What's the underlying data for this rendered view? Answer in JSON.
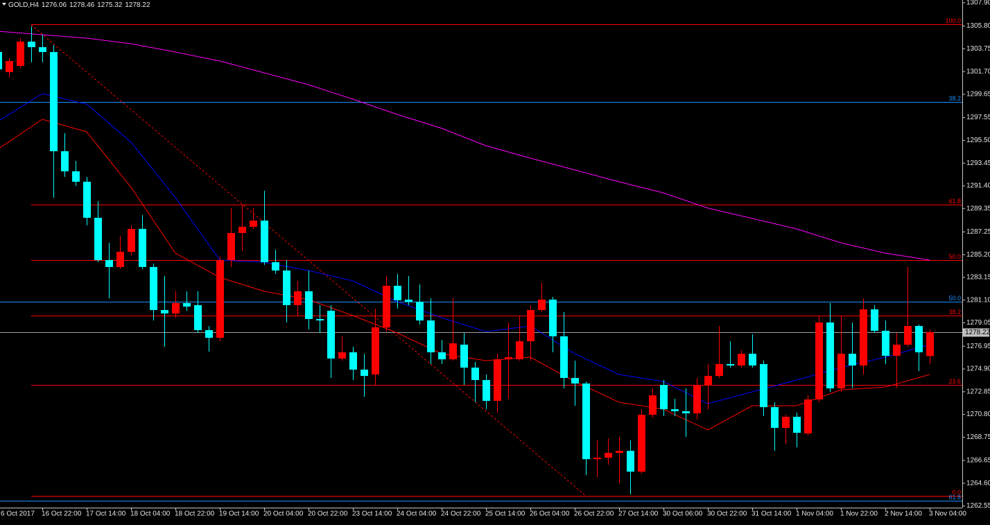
{
  "chart_data": {
    "type": "candlestick",
    "symbol": "GOLD,H4",
    "up_color": "#ff0000",
    "down_color": "#00ffff",
    "categories": [
      "6 Oct 2017",
      null,
      null,
      null,
      "16 Oct 22:00",
      null,
      null,
      null,
      "17 Oct 14:00",
      null,
      null,
      null,
      "18 Oct 04:00",
      null,
      null,
      null,
      "18 Oct 22:00",
      null,
      null,
      null,
      "19 Oct 14:00",
      null,
      null,
      null,
      "20 Oct 04:00",
      null,
      null,
      null,
      "20 Oct 22:00",
      null,
      null,
      null,
      "23 Oct 14:00",
      null,
      null,
      null,
      "24 Oct 04:00",
      null,
      null,
      null,
      "24 Oct 22:00",
      null,
      null,
      null,
      "25 Oct 14:00",
      null,
      null,
      null,
      "26 Oct 04:00",
      null,
      null,
      null,
      "26 Oct 22:00",
      null,
      null,
      null,
      "27 Oct 14:00",
      null,
      null,
      null,
      "30 Oct 06:00",
      null,
      null,
      null,
      "30 Oct 22:00",
      null,
      null,
      null,
      "31 Oct 14:00",
      null,
      null,
      null,
      "1 Nov 04:00",
      null,
      null,
      null,
      "1 Nov 22:00",
      null,
      null,
      null,
      "2 Nov 14:00",
      null,
      null,
      null,
      "3 Nov 04:00"
    ],
    "open": [
      1303.46,
      1301.65,
      1302.21,
      1304.4,
      1303.9,
      1303.46,
      1294.52,
      1292.71,
      1291.77,
      1288.52,
      1284.71,
      1284.09,
      1285.46,
      1287.52,
      1284.09,
      1280.21,
      1279.9,
      1280.84,
      1280.65,
      1278.4,
      1277.71,
      1284.71,
      1287.15,
      1287.71,
      1288.27,
      1284.52,
      1283.77,
      1280.65,
      1281.9,
      1279.4,
      1280.15,
      1275.84,
      1276.4,
      1274.84,
      1274.4,
      1278.65,
      1282.4,
      1281.15,
      1280.96,
      1279.27,
      1276.4,
      1275.77,
      1277.09,
      1275.02,
      1273.9,
      1272.02,
      1275.77,
      1275.77,
      1277.4,
      1280.21,
      1281.15,
      1277.84,
      1274.09,
      1273.59,
      1266.77,
      1266.9,
      1267.34,
      1267.52,
      1265.65,
      1270.77,
      1273.46,
      1271.27,
      1271.09,
      1270.9,
      1273.46,
      1274.27,
      1275.34,
      1275.21,
      1276.27,
      1275.34,
      1271.46,
      1269.59,
      1270.59,
      1269.09,
      1272.15,
      1279.09,
      1273.15,
      1276.27,
      1275.21,
      1280.27,
      1278.34,
      1276.09,
      1277.09,
      1278.77,
      1276.06
    ],
    "high": [
      1303.78,
      1302.9,
      1304.71,
      1305.78,
      1305.03,
      1304.09,
      1296.15,
      1293.65,
      1292.21,
      1290.02,
      1286.27,
      1286.9,
      1287.84,
      1288.77,
      1284.4,
      1283.27,
      1281.9,
      1281.9,
      1281.9,
      1278.77,
      1285.02,
      1289.4,
      1289.71,
      1289.4,
      1290.96,
      1285.65,
      1284.71,
      1282.84,
      1283.77,
      1280.65,
      1280.65,
      1277.84,
      1276.9,
      1276.27,
      1280.34,
      1283.27,
      1283.46,
      1283.27,
      1282.52,
      1281.27,
      1277.52,
      1281.27,
      1278.15,
      1275.52,
      1274.4,
      1276.27,
      1279.09,
      1279.71,
      1280.65,
      1282.65,
      1281.4,
      1280.02,
      1275.65,
      1273.77,
      1268.46,
      1268.65,
      1268.77,
      1268.46,
      1271.27,
      1273.15,
      1273.9,
      1272.21,
      1273.15,
      1274.09,
      1275.34,
      1278.77,
      1277.4,
      1276.59,
      1278.02,
      1275.65,
      1271.9,
      1270.77,
      1270.96,
      1272.52,
      1279.71,
      1280.84,
      1279.71,
      1279.09,
      1281.27,
      1280.65,
      1279.27,
      1278.15,
      1284.09,
      1278.9,
      1278.46
    ],
    "low": [
      1301.59,
      1301.15,
      1302.02,
      1302.53,
      1302.53,
      1290.34,
      1292.21,
      1291.4,
      1287.84,
      1284.52,
      1281.27,
      1283.9,
      1285.15,
      1283.9,
      1279.27,
      1276.9,
      1279.52,
      1280.15,
      1278.15,
      1276.46,
      1277.4,
      1284.09,
      1285.52,
      1287.52,
      1284.27,
      1283.46,
      1279.09,
      1279.71,
      1278.46,
      1278.15,
      1274.09,
      1275.65,
      1273.9,
      1272.4,
      1273.46,
      1278.27,
      1280.34,
      1280.65,
      1278.9,
      1275.34,
      1275.34,
      1275.65,
      1273.46,
      1271.9,
      1271.27,
      1270.96,
      1272.21,
      1275.65,
      1275.65,
      1280.02,
      1276.4,
      1273.15,
      1271.59,
      1265.34,
      1265.15,
      1266.27,
      1264.59,
      1263.59,
      1265.46,
      1270.52,
      1270.65,
      1270.65,
      1268.77,
      1270.34,
      1271.27,
      1274.09,
      1275.02,
      1275.02,
      1275.02,
      1270.65,
      1267.52,
      1268.15,
      1267.84,
      1268.9,
      1271.9,
      1272.84,
      1272.84,
      1273.15,
      1274.4,
      1278.15,
      1275.34,
      1273.15,
      1276.9,
      1274.71,
      1275.32
    ],
    "close": [
      1301.9,
      1302.65,
      1304.4,
      1303.9,
      1303.46,
      1294.52,
      1292.71,
      1291.77,
      1288.52,
      1284.71,
      1284.09,
      1285.46,
      1287.52,
      1284.09,
      1280.21,
      1279.9,
      1280.84,
      1280.52,
      1278.4,
      1277.71,
      1284.71,
      1287.15,
      1287.71,
      1288.27,
      1284.52,
      1283.77,
      1280.65,
      1281.9,
      1279.4,
      1279.27,
      1275.84,
      1276.4,
      1274.84,
      1274.27,
      1278.65,
      1282.4,
      1281.09,
      1280.96,
      1279.27,
      1276.4,
      1275.77,
      1277.21,
      1275.02,
      1273.9,
      1272.02,
      1275.77,
      1275.96,
      1277.4,
      1280.21,
      1281.15,
      1277.84,
      1274.09,
      1273.59,
      1266.77,
      1266.9,
      1267.34,
      1267.52,
      1265.65,
      1270.77,
      1272.52,
      1271.27,
      1271.09,
      1270.9,
      1273.46,
      1274.27,
      1275.34,
      1275.21,
      1276.27,
      1275.21,
      1271.46,
      1269.59,
      1270.59,
      1269.15,
      1272.15,
      1279.09,
      1273.15,
      1276.27,
      1275.21,
      1280.27,
      1278.34,
      1276.09,
      1277.09,
      1278.77,
      1276.4,
      1278.22
    ],
    "moving_averages": [
      {
        "color": "#ff00ff",
        "x": [
          0,
          4,
          8,
          12,
          16,
          20,
          24,
          28,
          32,
          36,
          40,
          44,
          48,
          52,
          56,
          60,
          64,
          68,
          72,
          76,
          80,
          84
        ],
        "values": [
          1305.34,
          1305.02,
          1304.71,
          1304.21,
          1303.46,
          1302.65,
          1301.59,
          1300.52,
          1299.21,
          1297.84,
          1296.59,
          1295.02,
          1293.9,
          1292.84,
          1291.77,
          1290.77,
          1289.4,
          1288.46,
          1287.52,
          1286.27,
          1285.34,
          1284.71
        ]
      },
      {
        "color": "#0000ff",
        "x": [
          0,
          4,
          8,
          12,
          16,
          20,
          24,
          28,
          32,
          36,
          40,
          44,
          48,
          52,
          56,
          60,
          64,
          68,
          72,
          76,
          80,
          84
        ],
        "values": [
          1297.21,
          1299.71,
          1298.77,
          1295.34,
          1290.34,
          1284.71,
          1284.52,
          1283.77,
          1282.84,
          1280.96,
          1279.52,
          1278.27,
          1278.77,
          1276.27,
          1274.4,
          1273.77,
          1271.77,
          1272.84,
          1273.9,
          1275.02,
          1275.96,
          1277.09
        ]
      },
      {
        "color": "#ff0000",
        "x": [
          0,
          4,
          8,
          12,
          16,
          20,
          24,
          28,
          32,
          36,
          40,
          44,
          48,
          52,
          56,
          60,
          64,
          68,
          72,
          76,
          80,
          84
        ],
        "values": [
          1294.71,
          1297.4,
          1296.27,
          1291.27,
          1285.34,
          1283.15,
          1281.9,
          1281.15,
          1279.71,
          1278.15,
          1276.27,
          1275.65,
          1275.96,
          1273.77,
          1271.9,
          1271.27,
          1269.4,
          1271.59,
          1271.59,
          1273.02,
          1273.27,
          1274.4
        ]
      }
    ],
    "fib_levels": [
      {
        "label": "100.0",
        "price": 1305.96,
        "color": "#ff0000"
      },
      {
        "label": "61.8",
        "price": 1289.71,
        "color": "#ff0000"
      },
      {
        "label": "50.0",
        "price": 1284.71,
        "color": "#ff0000"
      },
      {
        "label": "38.2",
        "price": 1279.71,
        "color": "#ff0000"
      },
      {
        "label": "23.6",
        "price": 1273.46,
        "color": "#ff0000"
      },
      {
        "label": "0.0",
        "price": 1263.46,
        "color": "#ff0000"
      },
      {
        "label": "38.2",
        "price": 1298.96,
        "color": "#1e90ff"
      },
      {
        "label": "50.0",
        "price": 1280.96,
        "color": "#1e90ff"
      },
      {
        "label": "61.8",
        "price": 1263.03,
        "color": "#1e90ff"
      }
    ],
    "trendline": {
      "color": "#ff0000",
      "x": [
        3,
        53
      ],
      "values": [
        1305.9,
        1263.46
      ]
    },
    "ylim": [
      1262.4,
      1308.15
    ],
    "yticks": [
      {
        "value": 1307.9,
        "label": "1307.90"
      },
      {
        "value": 1305.8,
        "label": "1305.80"
      },
      1303.75,
      {
        "value": 1301.7,
        "label": "1301.70"
      },
      1299.65,
      1297.55,
      {
        "value": 1295.5,
        "label": "1295.50"
      },
      1293.45,
      {
        "value": 1291.4,
        "label": "1291.40"
      },
      1289.35,
      1287.25,
      {
        "value": 1285.2,
        "label": "1285.20"
      },
      1283.15,
      {
        "value": 1281.1,
        "label": "1281.10"
      },
      1279.05,
      1276.95,
      {
        "value": 1274.9,
        "label": "1274.90"
      },
      1272.85,
      {
        "value": 1270.8,
        "label": "1270.80"
      },
      1268.75,
      1266.65,
      {
        "value": 1264.6,
        "label": "1264.60"
      },
      1262.55
    ]
  }
}
